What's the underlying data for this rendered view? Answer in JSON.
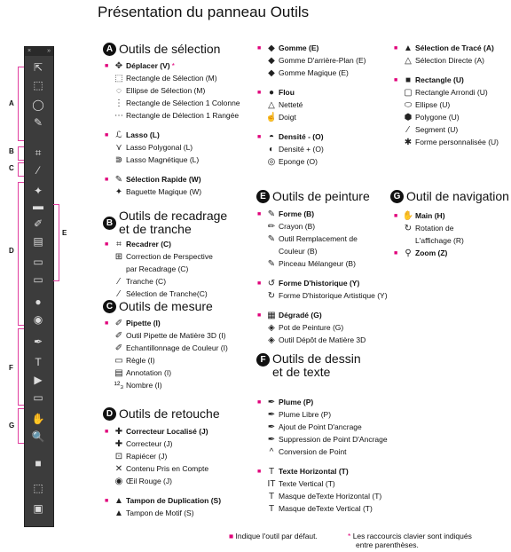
{
  "title": "Présentation du panneau Outils",
  "toolbar": {
    "letters": [
      "A",
      "B",
      "C",
      "D",
      "E",
      "F",
      "G"
    ],
    "icons": [
      "⇱",
      "⬚",
      "◯",
      "✎",
      "⌗",
      "⁄",
      "✦",
      "▬",
      "✐",
      "▤",
      "▭",
      "▭",
      "●",
      "◉",
      "✒",
      "T",
      "▶",
      "▭",
      "✋",
      "🔍",
      "■",
      "⬚",
      "▣"
    ]
  },
  "sections": {
    "A": {
      "badge": "A",
      "title": "Outils de sélection",
      "groups": [
        [
          {
            "icon": "✥",
            "label": "Déplacer (V)",
            "default": true,
            "star": true
          },
          {
            "icon": "⬚",
            "label": "Rectangle de Sélection (M)"
          },
          {
            "icon": "◌",
            "label": "Ellipse de Sélection (M)"
          },
          {
            "icon": "⋮",
            "label": "Rectangle de Sélection 1 Colonne"
          },
          {
            "icon": "⋯",
            "label": "Rectangle de Délection 1 Rangée"
          }
        ],
        [
          {
            "icon": "ℒ",
            "label": "Lasso (L)",
            "default": true
          },
          {
            "icon": "⋎",
            "label": "Lasso Polygonal (L)"
          },
          {
            "icon": "⋑",
            "label": "Lasso Magnétique (L)"
          }
        ],
        [
          {
            "icon": "✎",
            "label": "Sélection Rapide (W)",
            "default": true
          },
          {
            "icon": "✦",
            "label": "Baguette Magique  (W)"
          }
        ]
      ]
    },
    "B": {
      "badge": "B",
      "title_line1": "Outils de recadrage",
      "title_line2": "et de tranche",
      "items": [
        {
          "icon": "⌗",
          "label": "Recadrer (C)",
          "default": true
        },
        {
          "icon": "⊞",
          "label": "Correction de Perspective"
        },
        {
          "icon": "",
          "label": "par Recadrage (C)"
        },
        {
          "icon": "⁄",
          "label": "Tranche (C)"
        },
        {
          "icon": "⁄",
          "label": "Sélection de Tranche(C)"
        }
      ]
    },
    "C": {
      "badge": "C",
      "title": "Outils de mesure",
      "items": [
        {
          "icon": "✐",
          "label": "Pipette (I)",
          "default": true
        },
        {
          "icon": "✐",
          "label": "Outil Pipette de Matière 3D (I)"
        },
        {
          "icon": "✐",
          "label": "Echantillonnage de Couleur (I)"
        },
        {
          "icon": "▭",
          "label": "Règle (I)"
        },
        {
          "icon": "▤",
          "label": "Annotation (I)"
        },
        {
          "icon": "¹²₃",
          "label": "Nombre (I)"
        }
      ]
    },
    "D": {
      "badge": "D",
      "title": "Outils de retouche",
      "groups": [
        [
          {
            "icon": "✚",
            "label": "Correcteur Localisé (J)",
            "default": true
          },
          {
            "icon": "✚",
            "label": "Correcteur (J)"
          },
          {
            "icon": "⊡",
            "label": "Rapiécer (J)"
          },
          {
            "icon": "✕",
            "label": "Contenu Pris en Compte"
          },
          {
            "icon": "◉",
            "label": "Œil Rouge (J)"
          }
        ],
        [
          {
            "icon": "▲",
            "label": "Tampon de Duplication (S)",
            "default": true
          },
          {
            "icon": "▲",
            "label": "Tampon de Motif (S)"
          }
        ]
      ]
    },
    "col2top": {
      "groups": [
        [
          {
            "icon": "◆",
            "label": "Gomme (E)",
            "default": true
          },
          {
            "icon": "◆",
            "label": "Gomme D'arrière-Plan (E)"
          },
          {
            "icon": "◆",
            "label": "Gomme Magique (E)"
          }
        ],
        [
          {
            "icon": "●",
            "label": "Flou",
            "default": true
          },
          {
            "icon": "△",
            "label": "Netteté"
          },
          {
            "icon": "☝",
            "label": "Doigt"
          }
        ],
        [
          {
            "icon": "◓",
            "label": "Densité - (O)",
            "default": true
          },
          {
            "icon": "◐",
            "label": "Densité + (O)"
          },
          {
            "icon": "◎",
            "label": "Eponge (O)"
          }
        ]
      ]
    },
    "E": {
      "badge": "E",
      "title": "Outils de peinture",
      "groups": [
        [
          {
            "icon": "✎",
            "label": "Forme (B)",
            "default": true
          },
          {
            "icon": "✏",
            "label": "Crayon (B)"
          },
          {
            "icon": "✎",
            "label": "Outil Remplacement de"
          },
          {
            "icon": "",
            "label": "Couleur (B)"
          },
          {
            "icon": "✎",
            "label": "Pinceau Mélangeur (B)"
          }
        ],
        [
          {
            "icon": "↺",
            "label": "Forme D'historique (Y)",
            "default": true
          },
          {
            "icon": "↻",
            "label": "Forme D'historique Artistique (Y)"
          }
        ],
        [
          {
            "icon": "▦",
            "label": "Dégradé (G)",
            "default": true
          },
          {
            "icon": "◈",
            "label": "Pot de Peinture (G)"
          },
          {
            "icon": "◈",
            "label": "Outil Dépôt de Matière 3D"
          }
        ]
      ]
    },
    "F": {
      "badge": "F",
      "title_line1": "Outils de dessin",
      "title_line2": "et de texte",
      "groups": [
        [
          {
            "icon": "✒",
            "label": "Plume (P)",
            "default": true
          },
          {
            "icon": "✒",
            "label": "Plume Libre (P)"
          },
          {
            "icon": "✒",
            "label": "Ajout de Point D'ancrage"
          },
          {
            "icon": "✒",
            "label": "Suppression de Point D'Ancrage"
          },
          {
            "icon": "^",
            "label": "Conversion de Point"
          }
        ],
        [
          {
            "icon": "T",
            "label": "Texte Horizontal (T)",
            "default": true
          },
          {
            "icon": "IT",
            "label": "Texte Vertical (T)"
          },
          {
            "icon": "T",
            "label": "Masque deTexte Horizontal (T)"
          },
          {
            "icon": "T",
            "label": "Masque deTexte Vertical (T)"
          }
        ]
      ]
    },
    "col3top": {
      "groups": [
        [
          {
            "icon": "▲",
            "label": "Sélection de Tracé (A)",
            "default": true
          },
          {
            "icon": "△",
            "label": "Sélection Directe (A)"
          }
        ],
        [
          {
            "icon": "■",
            "label": "Rectangle (U)",
            "default": true
          },
          {
            "icon": "▢",
            "label": "Rectangle Arrondi (U)"
          },
          {
            "icon": "⬭",
            "label": "Ellipse (U)"
          },
          {
            "icon": "⬢",
            "label": "Polygone (U)"
          },
          {
            "icon": "⁄",
            "label": "Segment (U)"
          },
          {
            "icon": "✱",
            "label": "Forme personnalisée (U)"
          }
        ]
      ]
    },
    "G": {
      "badge": "G",
      "title": "Outil de navigation",
      "items": [
        {
          "icon": "✋",
          "label": "Main (H)",
          "default": true
        },
        {
          "icon": "↻",
          "label": "Rotation de"
        },
        {
          "icon": "",
          "label": "L'affichage (R)"
        },
        {
          "icon": "⚲",
          "label": "Zoom (Z)",
          "default": true
        }
      ]
    }
  },
  "footer": {
    "legend_default": "Indique l'outil par défaut.",
    "legend_star_1": "Les raccourcis clavier sont indiqués",
    "legend_star_2": "entre parenthèses."
  }
}
